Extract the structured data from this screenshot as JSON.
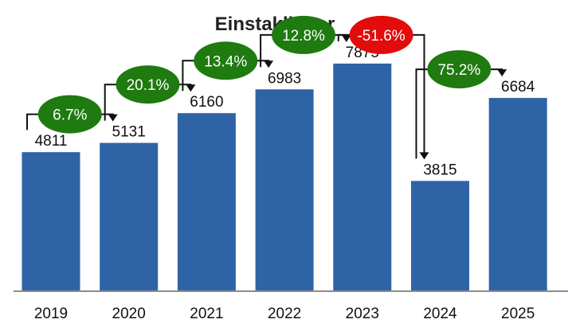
{
  "chart_data": {
    "type": "bar",
    "title": "Einstaklingar",
    "categories": [
      "2019",
      "2020",
      "2021",
      "2022",
      "2023",
      "2024",
      "2025"
    ],
    "values": [
      4811,
      5131,
      6160,
      6983,
      7875,
      3815,
      6684
    ],
    "changes": [
      {
        "from": "2019",
        "to": "2020",
        "label": "6.7%",
        "direction": "up"
      },
      {
        "from": "2020",
        "to": "2021",
        "label": "20.1%",
        "direction": "up"
      },
      {
        "from": "2021",
        "to": "2022",
        "label": "13.4%",
        "direction": "up"
      },
      {
        "from": "2022",
        "to": "2023",
        "label": "12.8%",
        "direction": "up"
      },
      {
        "from": "2023",
        "to": "2024",
        "label": "-51.6%",
        "direction": "down"
      },
      {
        "from": "2024",
        "to": "2025",
        "label": "75.2%",
        "direction": "up"
      }
    ],
    "xlabel": "",
    "ylabel": "",
    "ylim": [
      0,
      9000
    ],
    "grid": false,
    "colors": {
      "bar": "#2e64a6",
      "increase": "#1f7a10",
      "decrease": "#e30b0b",
      "connector": "#111111",
      "baseline": "#8c8c8c"
    }
  }
}
